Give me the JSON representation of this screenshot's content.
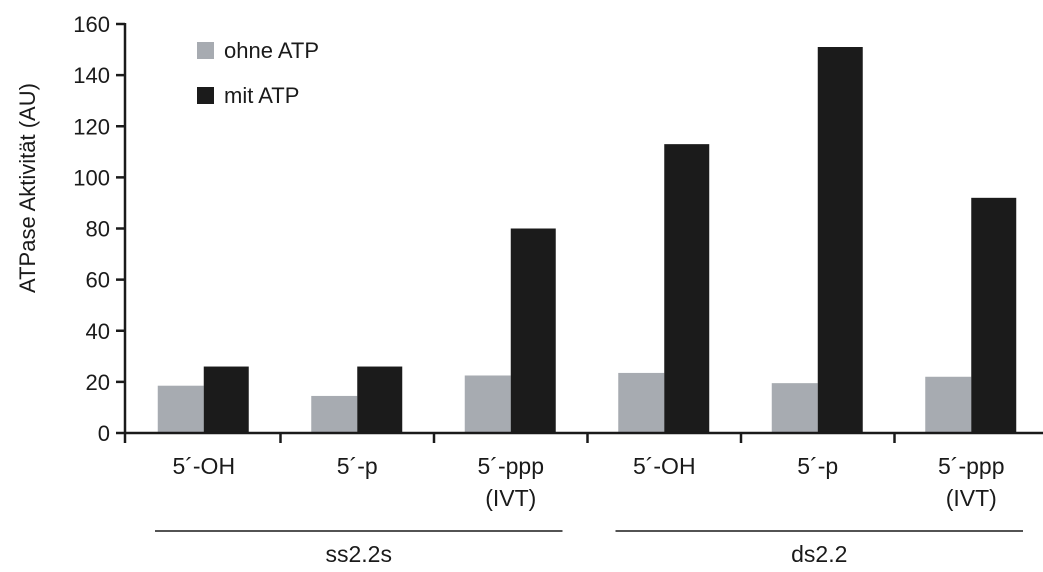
{
  "chart_data": {
    "type": "bar",
    "ylabel": "ATPase Aktivität (AU)",
    "ylim": [
      0,
      160
    ],
    "yticks": [
      0,
      20,
      40,
      60,
      80,
      100,
      120,
      140,
      160
    ],
    "grid": false,
    "legend_position": "top-left",
    "categories": [
      {
        "line1": "5´-OH",
        "line2": ""
      },
      {
        "line1": "5´-p",
        "line2": ""
      },
      {
        "line1": "5´-ppp",
        "line2": "(IVT)"
      },
      {
        "line1": "5´-OH",
        "line2": ""
      },
      {
        "line1": "5´-p",
        "line2": ""
      },
      {
        "line1": "5´-ppp",
        "line2": "(IVT)"
      }
    ],
    "groups": [
      {
        "label": "ss2.2s",
        "categories": [
          0,
          1,
          2
        ]
      },
      {
        "label": "ds2.2",
        "categories": [
          3,
          4,
          5
        ]
      }
    ],
    "series": [
      {
        "name": "ohne ATP",
        "color": "#a7abb1",
        "values": [
          18.5,
          14.5,
          22.5,
          23.5,
          19.5,
          22
        ]
      },
      {
        "name": "mit ATP",
        "color": "#1b1b1b",
        "values": [
          26,
          26,
          80,
          113,
          151,
          92
        ]
      }
    ]
  }
}
